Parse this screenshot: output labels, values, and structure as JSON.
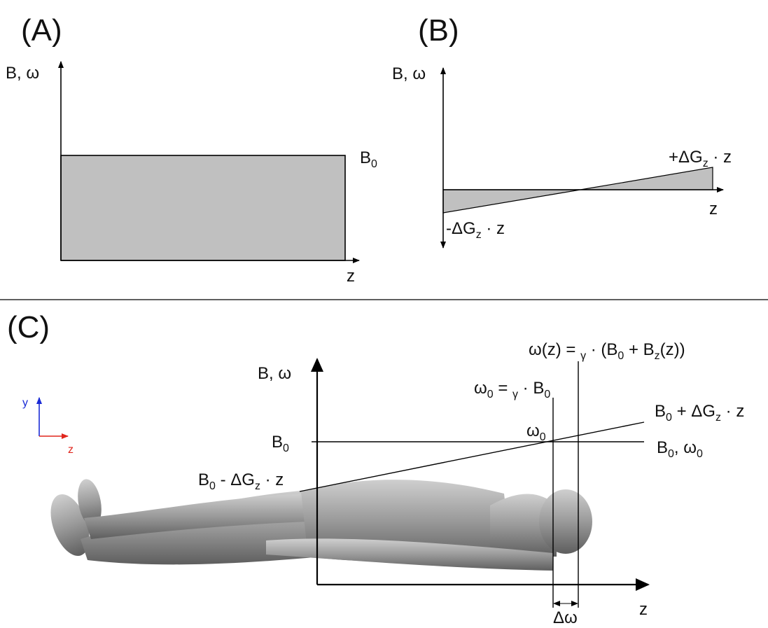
{
  "panel_a": {
    "tag": "(A)",
    "y_axis": "B, ω",
    "level": [
      "B",
      "0"
    ],
    "x_axis": "z"
  },
  "panel_b": {
    "tag": "(B)",
    "y_axis": "B, ω",
    "upper": [
      "+ΔG",
      "z",
      " · z"
    ],
    "lower": [
      "-ΔG",
      "z",
      " · z"
    ],
    "x_axis": "z"
  },
  "panel_c": {
    "tag": "(C)",
    "y_axis": "B, ω",
    "x_axis": "z",
    "frequency": [
      "ω(z) = ",
      "γ",
      " · (B",
      "0",
      " + B",
      "z",
      "(z))"
    ],
    "center_frequency": [
      "ω",
      "0",
      " = ",
      "γ",
      " · B",
      "0"
    ],
    "gradient_high": [
      "B",
      "0",
      " + ΔG",
      "z",
      " · z"
    ],
    "omega0": [
      "ω",
      "0"
    ],
    "b0": [
      "B",
      "0"
    ],
    "baseline": [
      "B",
      "0",
      ", ω",
      "0"
    ],
    "gradient_low": [
      "B",
      "0",
      " - ΔG",
      "z",
      " · z"
    ],
    "delta_omega": "Δω",
    "axes_y": "y",
    "axes_z": "z"
  }
}
